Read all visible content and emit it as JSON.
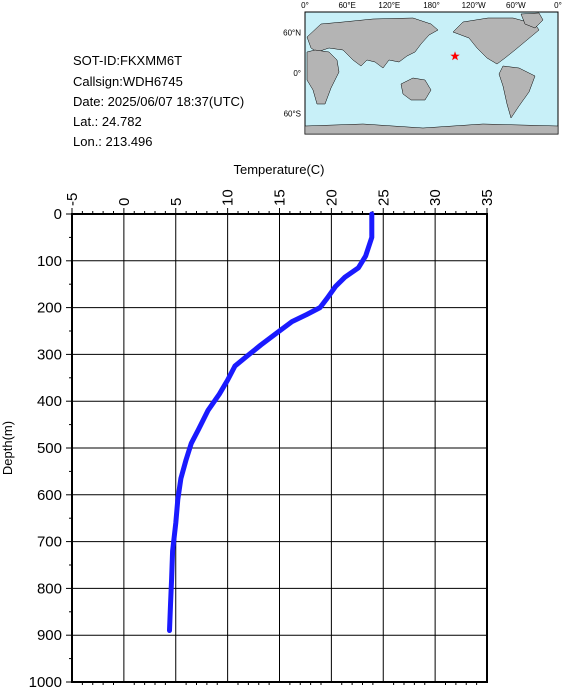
{
  "info": {
    "sot_id": "SOT-ID:FKXMM6T",
    "callsign": "Callsign:WDH6745",
    "date": "Date:  2025/06/07 18:37(UTC)",
    "lat": "Lat.:  24.782",
    "lon": "Lon.:  213.496"
  },
  "map": {
    "lon_labels": [
      "0°",
      "60°E",
      "120°E",
      "180°",
      "120°W",
      "60°W",
      "0°"
    ],
    "lat_labels": [
      "60°N",
      "0°",
      "60°S"
    ],
    "ocean_color": "#c8f0f8",
    "land_color": "#b4b4b4",
    "marker": {
      "lat": 24.782,
      "lon": 213.496,
      "color": "#ff0000",
      "symbol": "star-icon"
    }
  },
  "chart_data": {
    "type": "line",
    "title": "",
    "xlabel": "Temperature(C)",
    "ylabel": "Depth(m)",
    "xlim": [
      -5,
      35
    ],
    "ylim": [
      1000,
      0
    ],
    "x_ticks": [
      "-5",
      "0",
      "5",
      "10",
      "15",
      "20",
      "25",
      "30",
      "35"
    ],
    "y_ticks": [
      "0",
      "100",
      "200",
      "300",
      "400",
      "500",
      "600",
      "700",
      "800",
      "900",
      "1000"
    ],
    "grid": true,
    "series": [
      {
        "color": "#1a1aff",
        "points": [
          [
            23.9,
            0
          ],
          [
            23.9,
            50
          ],
          [
            23.3,
            90
          ],
          [
            22.6,
            115
          ],
          [
            21.3,
            135
          ],
          [
            20.4,
            155
          ],
          [
            19.6,
            180
          ],
          [
            18.9,
            200
          ],
          [
            17.6,
            215
          ],
          [
            16.2,
            230
          ],
          [
            14.7,
            255
          ],
          [
            13.2,
            280
          ],
          [
            11.8,
            305
          ],
          [
            10.7,
            325
          ],
          [
            10.0,
            355
          ],
          [
            9.2,
            385
          ],
          [
            8.1,
            420
          ],
          [
            7.2,
            460
          ],
          [
            6.5,
            490
          ],
          [
            6.0,
            525
          ],
          [
            5.5,
            565
          ],
          [
            5.2,
            610
          ],
          [
            5.0,
            660
          ],
          [
            4.7,
            720
          ],
          [
            4.6,
            780
          ],
          [
            4.5,
            830
          ],
          [
            4.4,
            890
          ]
        ]
      }
    ]
  }
}
